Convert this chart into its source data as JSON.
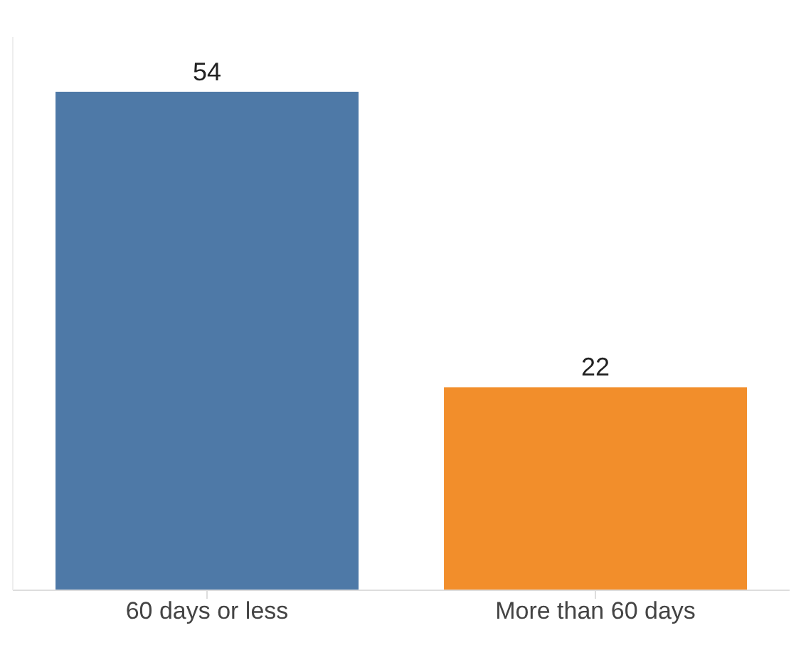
{
  "chart_data": {
    "type": "bar",
    "categories": [
      "60 days or less",
      "More than 60 days"
    ],
    "values": [
      54,
      22
    ],
    "colors": [
      "#4e79a7",
      "#f28e2b"
    ],
    "data_labels": true
  }
}
